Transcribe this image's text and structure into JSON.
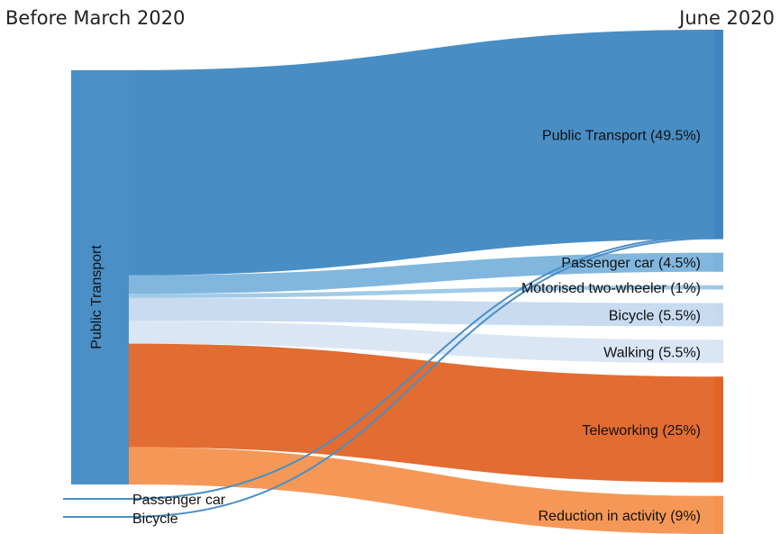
{
  "chart_data": {
    "type": "sankey",
    "left_header": "Before March 2020",
    "right_header": "June 2020",
    "sources": [
      {
        "name": "Public Transport",
        "color": "#4a8fc6"
      },
      {
        "name": "Passenger car",
        "color": "#4a8fc6"
      },
      {
        "name": "Bicycle",
        "color": "#4a8fc6"
      }
    ],
    "targets": [
      {
        "label": "Public Transport (49.5%)",
        "value": 49.5,
        "color": "#3f87c2"
      },
      {
        "label": "Passenger car (4.5%)",
        "value": 4.5,
        "color": "#7ab3dc"
      },
      {
        "label": "Motorised two-wheeler (1%)",
        "value": 1,
        "color": "#9cc7e6"
      },
      {
        "label": "Bicycle (5.5%)",
        "value": 5.5,
        "color": "#c5d9ef"
      },
      {
        "label": "Walking (5.5%)",
        "value": 5.5,
        "color": "#d9e5f4"
      },
      {
        "label": "Teleworking (25%)",
        "value": 25,
        "color": "#e06426"
      },
      {
        "label": "Reduction in activity (9%)",
        "value": 9,
        "color": "#f4924e"
      }
    ]
  }
}
